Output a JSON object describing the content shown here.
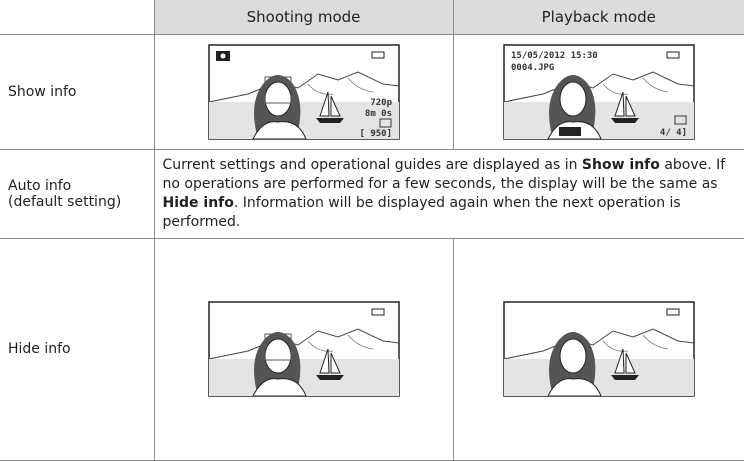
{
  "table": {
    "header": {
      "shooting": "Shooting mode",
      "playback": "Playback mode"
    },
    "rows": [
      {
        "label": "Show info",
        "shooting_overlay": {
          "quality": "720p",
          "time": "8m 0s",
          "remaining": "[ 950]"
        },
        "playback_overlay": {
          "date": "15/05/2012 15:30",
          "file": "0004.JPG",
          "count": "4/ 4]"
        }
      },
      {
        "label": [
          "Auto info",
          "(default setting)"
        ],
        "description": [
          "Current settings and operational guides are displayed as in ",
          "Show info",
          " above. If no operations are performed for a few seconds, the display will be the same as ",
          "Hide info",
          ". Information will be displayed again when the next operation is performed."
        ]
      },
      {
        "label": "Hide info"
      }
    ]
  }
}
